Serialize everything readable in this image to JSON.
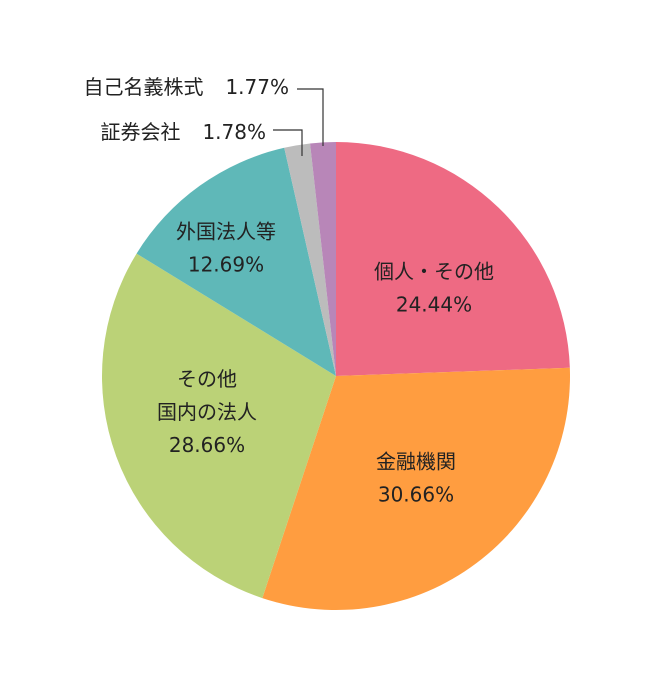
{
  "chart_data": {
    "type": "pie",
    "start_angle": "12 o'clock",
    "direction": "clockwise",
    "slices": [
      {
        "label_lines": [
          "個人・その他"
        ],
        "value": 24.44,
        "value_text": "24.44%",
        "color": "#ee6a83"
      },
      {
        "label_lines": [
          "金融機関"
        ],
        "value": 30.66,
        "value_text": "30.66%",
        "color": "#ff9d40"
      },
      {
        "label_lines": [
          "その他",
          "国内の法人"
        ],
        "value": 28.66,
        "value_text": "28.66%",
        "color": "#bbd277"
      },
      {
        "label_lines": [
          "外国法人等"
        ],
        "value": 12.69,
        "value_text": "12.69%",
        "color": "#5fb8b8"
      },
      {
        "label_lines": [
          "証券会社"
        ],
        "value": 1.78,
        "value_text": "1.78%",
        "color": "#bcbcbc"
      },
      {
        "label_lines": [
          "自己名義株式"
        ],
        "value": 1.77,
        "value_text": "1.77%",
        "color": "#b886b8"
      }
    ]
  }
}
